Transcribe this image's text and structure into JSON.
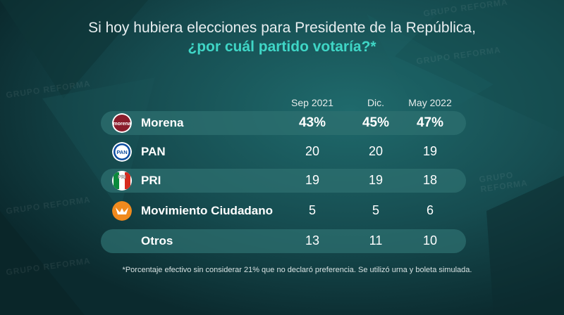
{
  "title_line1": "Si hoy hubiera elecciones para Presidente de la República,",
  "title_line2": "¿por cuál partido votaría?*",
  "watermark": "GRUPO REFORMA",
  "footnote": "*Porcentaje efectivo sin considerar 21% que no declaró preferencia. Se utilizó urna y boleta simulada.",
  "logos": {
    "morena": "morena",
    "pan": "PAN",
    "pri": "PRI"
  },
  "colors": {
    "title_accent": "#3fd6c6",
    "band": "#2e7070",
    "morena": "#8b1d2c",
    "pan": "#0b4ca0",
    "pri_green": "#0a8a3c",
    "pri_red": "#d52b1e",
    "mc": "#f08a1e"
  },
  "chart_data": {
    "type": "table",
    "columns": [
      "Sep 2021",
      "Dic.",
      "May 2022"
    ],
    "rows": [
      {
        "party": "Morena",
        "icon": "morena-logo-icon",
        "values": [
          "43%",
          "45%",
          "47%"
        ]
      },
      {
        "party": "PAN",
        "icon": "pan-logo-icon",
        "values": [
          "20",
          "20",
          "19"
        ]
      },
      {
        "party": "PRI",
        "icon": "pri-logo-icon",
        "values": [
          "19",
          "19",
          "18"
        ]
      },
      {
        "party": "Movimiento Ciudadano",
        "icon": "mc-logo-icon",
        "values": [
          "5",
          "5",
          "6"
        ]
      },
      {
        "party": "Otros",
        "icon": "",
        "values": [
          "13",
          "11",
          "10"
        ]
      }
    ]
  }
}
